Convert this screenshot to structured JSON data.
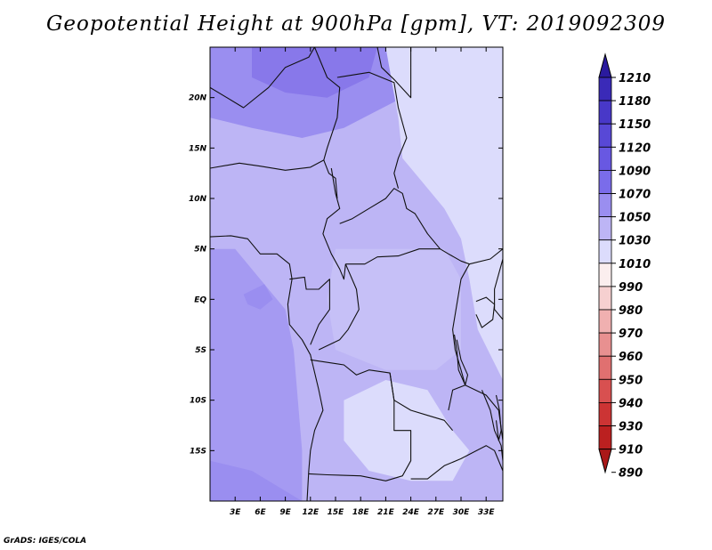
{
  "title": "Geopotential Height at 900hPa [gpm], VT: 2019092309",
  "footer": "GrADS: IGES/COLA",
  "map": {
    "lon_range": [
      0,
      35
    ],
    "lat_range": [
      -20,
      25
    ],
    "lon_ticks": [
      {
        "value": 3,
        "label": "3E"
      },
      {
        "value": 6,
        "label": "6E"
      },
      {
        "value": 9,
        "label": "9E"
      },
      {
        "value": 12,
        "label": "12E"
      },
      {
        "value": 15,
        "label": "15E"
      },
      {
        "value": 18,
        "label": "18E"
      },
      {
        "value": 21,
        "label": "21E"
      },
      {
        "value": 24,
        "label": "24E"
      },
      {
        "value": 27,
        "label": "27E"
      },
      {
        "value": 30,
        "label": "30E"
      },
      {
        "value": 33,
        "label": "33E"
      }
    ],
    "lat_ticks": [
      {
        "value": 20,
        "label": "20N"
      },
      {
        "value": 15,
        "label": "15N"
      },
      {
        "value": 10,
        "label": "10N"
      },
      {
        "value": 5,
        "label": "5N"
      },
      {
        "value": 0,
        "label": "EQ"
      },
      {
        "value": -5,
        "label": "5S"
      },
      {
        "value": -10,
        "label": "10S"
      },
      {
        "value": -15,
        "label": "15S"
      }
    ],
    "base_color": "#bdb5f5",
    "regions": [
      {
        "name": "northwest-low-region",
        "color": "#9a8ef0",
        "points": [
          [
            0,
            25
          ],
          [
            23,
            25
          ],
          [
            23,
            20
          ],
          [
            16,
            17
          ],
          [
            11,
            16
          ],
          [
            5,
            17
          ],
          [
            0,
            18
          ]
        ]
      },
      {
        "name": "northwest-peak-region",
        "color": "#8878ea",
        "points": [
          [
            5,
            25
          ],
          [
            20,
            25
          ],
          [
            19,
            22
          ],
          [
            14,
            20
          ],
          [
            9,
            20.5
          ],
          [
            5,
            22
          ]
        ]
      },
      {
        "name": "southwest-ocean-region",
        "color": "#a59af2",
        "points": [
          [
            0,
            5
          ],
          [
            3,
            5
          ],
          [
            6,
            2
          ],
          [
            9,
            -1
          ],
          [
            10,
            -5
          ],
          [
            10.5,
            -10
          ],
          [
            11,
            -15
          ],
          [
            11,
            -20
          ],
          [
            0,
            -20
          ]
        ]
      },
      {
        "name": "gulf-low-region",
        "color": "#9a8ef0",
        "points": [
          [
            4,
            0.5
          ],
          [
            6.5,
            1.5
          ],
          [
            7.5,
            0
          ],
          [
            6,
            -1
          ],
          [
            4.5,
            -0.5
          ]
        ]
      },
      {
        "name": "east-plateau-region",
        "color": "#dcdcfc",
        "points": [
          [
            21,
            25
          ],
          [
            35,
            25
          ],
          [
            35,
            -8
          ],
          [
            32,
            -3
          ],
          [
            31,
            2
          ],
          [
            30,
            6
          ],
          [
            28,
            9
          ],
          [
            25,
            12
          ],
          [
            23,
            14
          ],
          [
            22.5,
            18
          ]
        ]
      },
      {
        "name": "central-basin-region",
        "color": "#c6c0f7",
        "points": [
          [
            15,
            5
          ],
          [
            22,
            5
          ],
          [
            28,
            5
          ],
          [
            30,
            2
          ],
          [
            30,
            -5
          ],
          [
            27,
            -7
          ],
          [
            21,
            -7
          ],
          [
            15,
            -5
          ],
          [
            14,
            0
          ]
        ]
      },
      {
        "name": "southeast-plateau-region",
        "color": "#dcdcfc",
        "points": [
          [
            16,
            -10
          ],
          [
            21,
            -8
          ],
          [
            26,
            -9
          ],
          [
            29,
            -13
          ],
          [
            31,
            -15
          ],
          [
            29,
            -18
          ],
          [
            24,
            -18
          ],
          [
            19,
            -17
          ],
          [
            16,
            -14
          ]
        ]
      },
      {
        "name": "far-southwest-low-region",
        "color": "#9a8ef0",
        "points": [
          [
            0,
            -16
          ],
          [
            5,
            -17
          ],
          [
            11,
            -20
          ],
          [
            0,
            -20
          ]
        ]
      }
    ],
    "borders": [
      {
        "name": "coastline-west",
        "points": [
          [
            0,
            6.2
          ],
          [
            2.5,
            6.3
          ],
          [
            4.5,
            6
          ],
          [
            6,
            4.5
          ],
          [
            8,
            4.5
          ],
          [
            9.5,
            3.5
          ],
          [
            9.8,
            2
          ],
          [
            9.6,
            1
          ],
          [
            9.3,
            -0.5
          ],
          [
            9.5,
            -2.5
          ],
          [
            11,
            -4
          ],
          [
            12,
            -5.5
          ],
          [
            13,
            -9
          ],
          [
            13.5,
            -11
          ],
          [
            12.5,
            -13
          ],
          [
            12,
            -15
          ],
          [
            11.8,
            -17
          ],
          [
            11.6,
            -20
          ]
        ]
      },
      {
        "name": "border-nigeria-north",
        "points": [
          [
            0,
            13
          ],
          [
            3.5,
            13.5
          ],
          [
            6,
            13.2
          ],
          [
            9,
            12.8
          ],
          [
            12,
            13.1
          ],
          [
            13.6,
            13.8
          ],
          [
            14.2,
            12.5
          ],
          [
            15,
            12
          ],
          [
            15.2,
            10
          ]
        ]
      },
      {
        "name": "border-chad-cameroon",
        "points": [
          [
            14.5,
            13
          ],
          [
            15,
            10.5
          ],
          [
            15.5,
            9
          ],
          [
            14,
            8
          ],
          [
            13.5,
            6.5
          ],
          [
            14.5,
            4.5
          ],
          [
            15.5,
            3
          ],
          [
            16,
            2
          ],
          [
            16.2,
            3.5
          ]
        ]
      },
      {
        "name": "border-car-south",
        "points": [
          [
            16.2,
            3.5
          ],
          [
            18.5,
            3.5
          ],
          [
            20,
            4.2
          ],
          [
            22.5,
            4.3
          ],
          [
            25,
            5
          ],
          [
            27.5,
            5
          ],
          [
            28.5,
            4.5
          ],
          [
            30,
            3.8
          ],
          [
            31,
            3.5
          ]
        ]
      },
      {
        "name": "border-car-north",
        "points": [
          [
            15.5,
            7.5
          ],
          [
            17,
            8
          ],
          [
            19,
            9
          ],
          [
            21,
            10
          ],
          [
            22,
            11
          ],
          [
            23,
            10.5
          ],
          [
            23.5,
            9
          ],
          [
            24.5,
            8.5
          ],
          [
            26,
            6.5
          ],
          [
            27.5,
            5
          ]
        ]
      },
      {
        "name": "border-chad-east",
        "points": [
          [
            15.2,
            22
          ],
          [
            19,
            22.5
          ],
          [
            22,
            21.5
          ],
          [
            22.5,
            19
          ],
          [
            23.5,
            16
          ],
          [
            22.5,
            14
          ],
          [
            22,
            12.5
          ],
          [
            22.5,
            11
          ]
        ]
      },
      {
        "name": "border-sudan-libya",
        "points": [
          [
            20,
            25
          ],
          [
            20.5,
            23
          ],
          [
            22,
            21.8
          ],
          [
            24,
            20
          ],
          [
            24,
            25
          ]
        ]
      },
      {
        "name": "border-niger-algeria",
        "points": [
          [
            0,
            21
          ],
          [
            4,
            19
          ],
          [
            7,
            21
          ],
          [
            9,
            23
          ],
          [
            11.8,
            24
          ],
          [
            12.5,
            25
          ]
        ]
      },
      {
        "name": "border-niger-chad",
        "points": [
          [
            12.5,
            25
          ],
          [
            14,
            22
          ],
          [
            15.5,
            21
          ],
          [
            15.2,
            18
          ],
          [
            14,
            15
          ],
          [
            13.6,
            13.8
          ]
        ]
      },
      {
        "name": "border-gabon-congo",
        "points": [
          [
            9.5,
            2
          ],
          [
            11.3,
            2.2
          ],
          [
            11.5,
            1
          ],
          [
            13,
            1
          ],
          [
            14.3,
            2
          ],
          [
            14.3,
            -1
          ],
          [
            13,
            -2.5
          ],
          [
            12,
            -4.5
          ]
        ]
      },
      {
        "name": "border-congo-drc",
        "points": [
          [
            16.2,
            3.5
          ],
          [
            17.5,
            1
          ],
          [
            17.8,
            -1
          ],
          [
            16.5,
            -3
          ],
          [
            15.5,
            -4
          ],
          [
            13,
            -5
          ]
        ]
      },
      {
        "name": "border-drc-angola",
        "points": [
          [
            12,
            -6
          ],
          [
            16,
            -6.5
          ],
          [
            17.5,
            -7.5
          ],
          [
            19,
            -7
          ],
          [
            21.5,
            -7.3
          ],
          [
            22,
            -10
          ],
          [
            24,
            -11
          ],
          [
            26,
            -11.5
          ],
          [
            28,
            -12
          ],
          [
            29,
            -13
          ]
        ]
      },
      {
        "name": "border-angola-zambia",
        "points": [
          [
            21.5,
            -7.3
          ],
          [
            22,
            -10
          ],
          [
            22,
            -13
          ],
          [
            24,
            -13
          ],
          [
            24,
            -16
          ],
          [
            23,
            -17.5
          ],
          [
            21,
            -18
          ],
          [
            18,
            -17.5
          ],
          [
            14,
            -17.4
          ],
          [
            11.8,
            -17.3
          ]
        ]
      },
      {
        "name": "border-drc-east",
        "points": [
          [
            31,
            3.5
          ],
          [
            30,
            2
          ],
          [
            29.5,
            -0.5
          ],
          [
            29,
            -3
          ],
          [
            29.3,
            -5
          ],
          [
            30,
            -7
          ],
          [
            30.5,
            -8.5
          ],
          [
            29,
            -9
          ],
          [
            28.5,
            -11
          ]
        ]
      },
      {
        "name": "border-east-africa",
        "points": [
          [
            31,
            3.5
          ],
          [
            33.5,
            4
          ],
          [
            35,
            5
          ],
          [
            35,
            4
          ],
          [
            34,
            1
          ],
          [
            34,
            -1
          ],
          [
            35,
            -2
          ]
        ]
      },
      {
        "name": "border-tanzania-south",
        "points": [
          [
            30.5,
            -8.5
          ],
          [
            33,
            -9.5
          ],
          [
            34.5,
            -11
          ],
          [
            35,
            -14
          ]
        ]
      },
      {
        "name": "border-zambia-south",
        "points": [
          [
            24,
            -17.8
          ],
          [
            26,
            -17.8
          ],
          [
            28,
            -16.5
          ],
          [
            30,
            -15.8
          ],
          [
            33,
            -14.5
          ],
          [
            34,
            -15
          ],
          [
            35,
            -17
          ]
        ]
      },
      {
        "name": "border-mozambique-malawi",
        "points": [
          [
            32.5,
            -9
          ],
          [
            33.5,
            -11
          ],
          [
            34,
            -13
          ],
          [
            34.8,
            -14.5
          ],
          [
            35,
            -16
          ]
        ]
      },
      {
        "name": "lake-tanganyika",
        "points": [
          [
            29.2,
            -3.5
          ],
          [
            29.5,
            -5
          ],
          [
            29.7,
            -7
          ],
          [
            30.5,
            -8.5
          ],
          [
            30.8,
            -7.5
          ],
          [
            30,
            -6
          ],
          [
            29.5,
            -4
          ]
        ]
      },
      {
        "name": "lake-victoria",
        "points": [
          [
            31.8,
            -0.2
          ],
          [
            33,
            0.2
          ],
          [
            34,
            -0.5
          ],
          [
            33.8,
            -2
          ],
          [
            32.5,
            -2.8
          ],
          [
            31.8,
            -1.5
          ]
        ]
      },
      {
        "name": "lake-malawi",
        "points": [
          [
            34.2,
            -9.5
          ],
          [
            34.6,
            -11
          ],
          [
            34.8,
            -13
          ],
          [
            34.5,
            -14
          ],
          [
            34.2,
            -12
          ]
        ]
      }
    ]
  },
  "colorbar": {
    "levels": [
      "1210",
      "1180",
      "1150",
      "1120",
      "1090",
      "1070",
      "1050",
      "1030",
      "1010",
      "990",
      "980",
      "970",
      "960",
      "950",
      "940",
      "930",
      "910",
      "890"
    ],
    "colors": [
      "#2a1a9e",
      "#3a2ab8",
      "#4838c8",
      "#5848d6",
      "#6858e2",
      "#7a6cea",
      "#9a8ef0",
      "#bdb5f5",
      "#dcdcfc",
      "#fbeeee",
      "#f6d0d0",
      "#f0b0b0",
      "#e89090",
      "#e07070",
      "#d85050",
      "#cc3434",
      "#bb2020",
      "#aa1818"
    ]
  }
}
